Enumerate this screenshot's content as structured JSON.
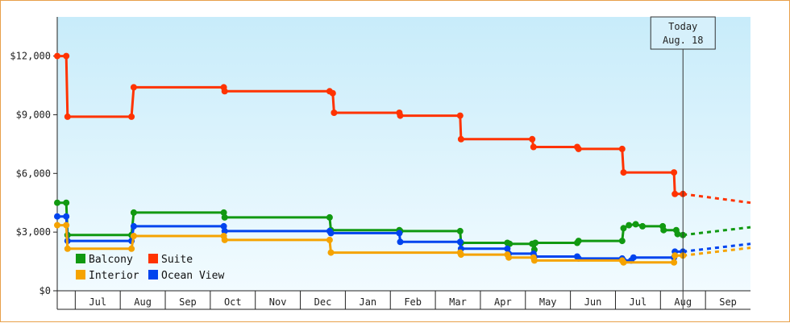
{
  "chart_data": {
    "type": "line",
    "title": "",
    "xlabel": "",
    "ylabel": "",
    "ylim": [
      0,
      14000
    ],
    "y_ticks": [
      {
        "value": 0,
        "label": "$0"
      },
      {
        "value": 3000,
        "label": "$3,000"
      },
      {
        "value": 6000,
        "label": "$6,000"
      },
      {
        "value": 9000,
        "label": "$9,000"
      },
      {
        "value": 12000,
        "label": "$12,000"
      }
    ],
    "x_months": [
      {
        "label": "Jul",
        "start": 0.4,
        "end": 1.4
      },
      {
        "label": "Aug",
        "start": 1.4,
        "end": 2.4
      },
      {
        "label": "Sep",
        "start": 2.4,
        "end": 3.4
      },
      {
        "label": "Oct",
        "start": 3.4,
        "end": 4.4
      },
      {
        "label": "Nov",
        "start": 4.4,
        "end": 5.4
      },
      {
        "label": "Dec",
        "start": 5.4,
        "end": 6.4
      },
      {
        "label": "Jan",
        "start": 6.4,
        "end": 7.4
      },
      {
        "label": "Feb",
        "start": 7.4,
        "end": 8.4
      },
      {
        "label": "Mar",
        "start": 8.4,
        "end": 9.4
      },
      {
        "label": "Apr",
        "start": 9.4,
        "end": 10.4
      },
      {
        "label": "May",
        "start": 10.4,
        "end": 11.4
      },
      {
        "label": "Jun",
        "start": 11.4,
        "end": 12.4
      },
      {
        "label": "Jul",
        "start": 12.4,
        "end": 13.4
      },
      {
        "label": "Aug",
        "start": 13.4,
        "end": 14.4
      },
      {
        "label": "Sep",
        "start": 14.4,
        "end": 15.4
      }
    ],
    "xlim": [
      0,
      15.4
    ],
    "today": {
      "line1": "Today",
      "line2": "Aug. 18",
      "x": 13.9
    },
    "grid": false,
    "legend_position": "bottom-left",
    "series": [
      {
        "name": "Suite",
        "color": "#ff3300",
        "points": [
          [
            0,
            12000
          ],
          [
            0.2,
            12000
          ],
          [
            0.23,
            8900
          ],
          [
            1.65,
            8900
          ],
          [
            1.7,
            10400
          ],
          [
            3.7,
            10400
          ],
          [
            3.72,
            10200
          ],
          [
            6.05,
            10200
          ],
          [
            6.12,
            10100
          ],
          [
            6.15,
            9100
          ],
          [
            7.6,
            9100
          ],
          [
            7.62,
            8950
          ],
          [
            8.95,
            8950
          ],
          [
            8.97,
            7750
          ],
          [
            10.55,
            7750
          ],
          [
            10.58,
            7350
          ],
          [
            11.55,
            7350
          ],
          [
            11.58,
            7250
          ],
          [
            12.55,
            7250
          ],
          [
            12.58,
            6050
          ],
          [
            13.7,
            6050
          ],
          [
            13.72,
            4950
          ],
          [
            13.9,
            4950
          ]
        ],
        "forecast": [
          [
            13.9,
            4950
          ],
          [
            15.4,
            4500
          ]
        ]
      },
      {
        "name": "Balcony",
        "color": "#119911",
        "points": [
          [
            0,
            4500
          ],
          [
            0.2,
            4500
          ],
          [
            0.23,
            2850
          ],
          [
            1.65,
            2850
          ],
          [
            1.7,
            4000
          ],
          [
            3.7,
            4000
          ],
          [
            3.72,
            3750
          ],
          [
            6.05,
            3750
          ],
          [
            6.08,
            3100
          ],
          [
            7.6,
            3100
          ],
          [
            7.62,
            3050
          ],
          [
            8.95,
            3050
          ],
          [
            8.97,
            2450
          ],
          [
            10.0,
            2450
          ],
          [
            10.05,
            2400
          ],
          [
            10.55,
            2400
          ],
          [
            10.6,
            2100
          ],
          [
            10.62,
            2450
          ],
          [
            11.55,
            2450
          ],
          [
            11.58,
            2550
          ],
          [
            12.55,
            2550
          ],
          [
            12.58,
            3200
          ],
          [
            12.7,
            3350
          ],
          [
            12.85,
            3400
          ],
          [
            13.0,
            3300
          ],
          [
            13.45,
            3300
          ],
          [
            13.47,
            3100
          ],
          [
            13.75,
            3100
          ],
          [
            13.78,
            2900
          ],
          [
            13.9,
            2850
          ]
        ],
        "forecast": [
          [
            13.9,
            2850
          ],
          [
            15.4,
            3250
          ]
        ]
      },
      {
        "name": "Ocean View",
        "color": "#0044ee",
        "points": [
          [
            0,
            3800
          ],
          [
            0.2,
            3800
          ],
          [
            0.23,
            2550
          ],
          [
            1.65,
            2550
          ],
          [
            1.7,
            3300
          ],
          [
            3.7,
            3300
          ],
          [
            3.72,
            3050
          ],
          [
            6.05,
            3050
          ],
          [
            6.08,
            2950
          ],
          [
            7.6,
            2950
          ],
          [
            7.62,
            2500
          ],
          [
            8.95,
            2500
          ],
          [
            8.97,
            2150
          ],
          [
            10.0,
            2150
          ],
          [
            10.03,
            1900
          ],
          [
            10.58,
            1900
          ],
          [
            10.6,
            1750
          ],
          [
            11.55,
            1750
          ],
          [
            11.58,
            1650
          ],
          [
            12.55,
            1650
          ],
          [
            12.58,
            1550
          ],
          [
            12.75,
            1550
          ],
          [
            12.8,
            1700
          ],
          [
            13.7,
            1700
          ],
          [
            13.72,
            2000
          ],
          [
            13.9,
            2000
          ]
        ],
        "forecast": [
          [
            13.9,
            2000
          ],
          [
            15.4,
            2400
          ]
        ]
      },
      {
        "name": "Interior",
        "color": "#f5a300",
        "points": [
          [
            0,
            3350
          ],
          [
            0.2,
            3350
          ],
          [
            0.23,
            2150
          ],
          [
            1.65,
            2150
          ],
          [
            1.7,
            2800
          ],
          [
            3.7,
            2800
          ],
          [
            3.72,
            2600
          ],
          [
            6.05,
            2600
          ],
          [
            6.08,
            1950
          ],
          [
            8.95,
            1950
          ],
          [
            8.97,
            1850
          ],
          [
            10.0,
            1850
          ],
          [
            10.03,
            1700
          ],
          [
            10.58,
            1700
          ],
          [
            10.6,
            1550
          ],
          [
            12.55,
            1550
          ],
          [
            12.58,
            1450
          ],
          [
            13.7,
            1450
          ],
          [
            13.72,
            1800
          ],
          [
            13.9,
            1800
          ]
        ],
        "forecast": [
          [
            13.9,
            1800
          ],
          [
            15.4,
            2200
          ]
        ]
      }
    ]
  }
}
